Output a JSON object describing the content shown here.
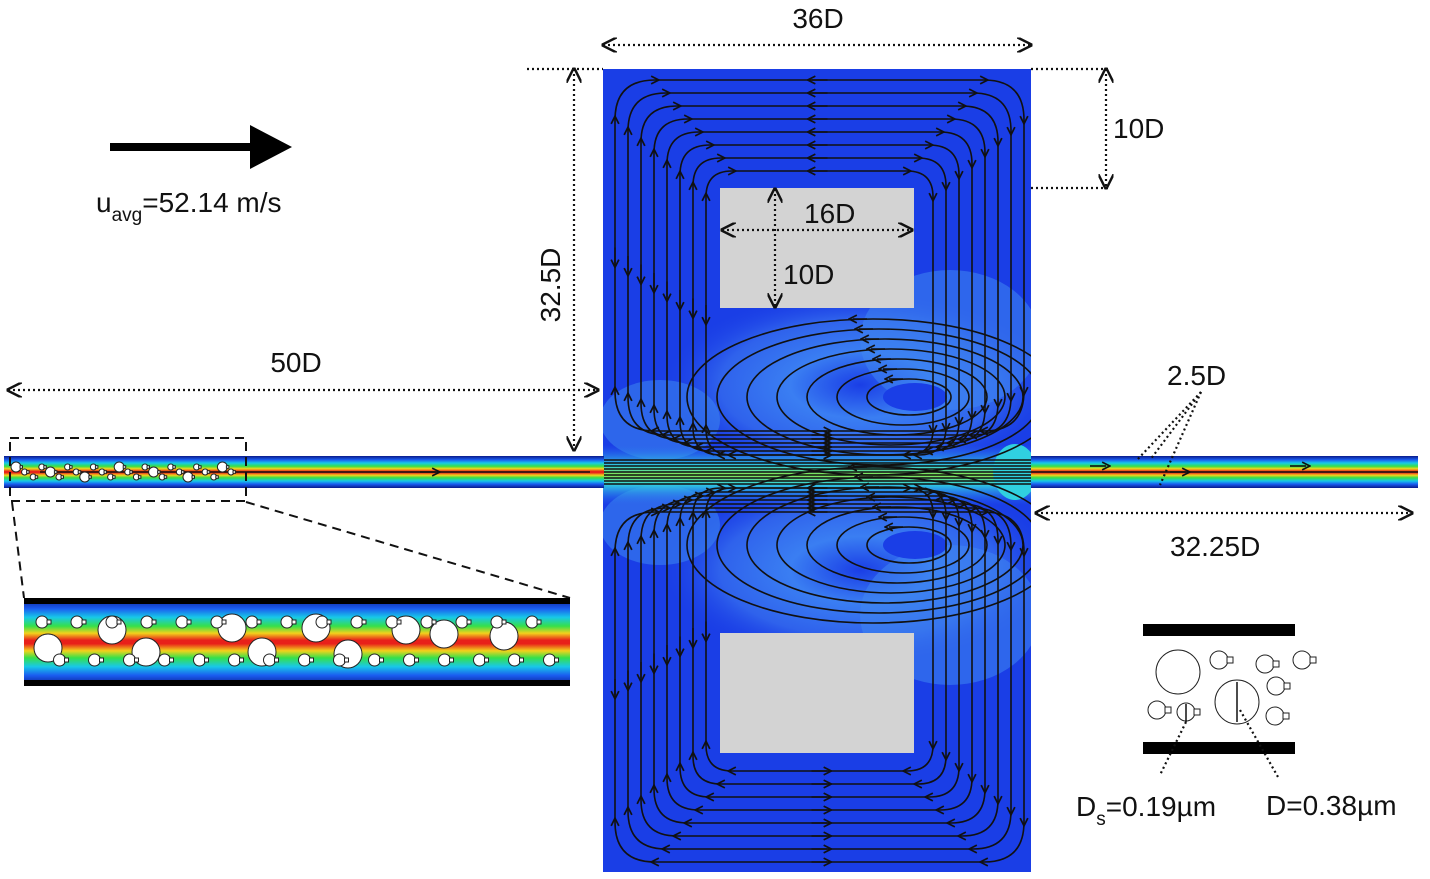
{
  "velocity": {
    "symbol": "u",
    "subscript": "avg",
    "value": "=52.14 m/s"
  },
  "dims": {
    "width_top": "36D",
    "height_left": "32.5D",
    "gap_right": "10D",
    "block_width": "16D",
    "block_height": "10D",
    "inlet_length": "50D",
    "channel_width": "2.5D",
    "outlet_length": "32.25D"
  },
  "particles": {
    "small": {
      "symbol": "D",
      "subscript": "s",
      "value": "=0.19µm"
    },
    "large": "D=0.38µm"
  },
  "colors": {
    "background_flow": "#1a3ee6",
    "block": "#d3d3d3",
    "channel_core": "#e8201a",
    "channel_mid": "#f2d21c",
    "channel_edge": "#18c8e8"
  }
}
